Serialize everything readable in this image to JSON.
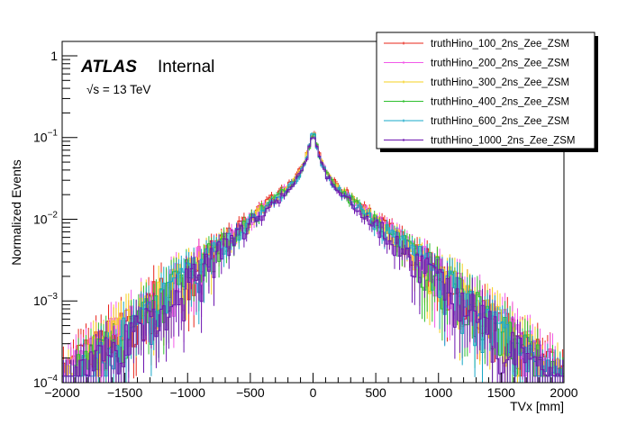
{
  "chart_data": {
    "type": "line",
    "subtype": "step-histogram",
    "title": "",
    "xlabel": "TVx [mm]",
    "ylabel": "Normalized Events",
    "xlim": [
      -2000,
      2000
    ],
    "ylim": [
      0.0001,
      1.5
    ],
    "yscale": "log",
    "grid": false,
    "legend_position": "top-right",
    "x_ticks": [
      -2000,
      -1500,
      -1000,
      -500,
      0,
      500,
      1000,
      1500,
      2000
    ],
    "x_tick_labels": [
      "−2000",
      "−1500",
      "−1000",
      "−500",
      "0",
      "500",
      "1000",
      "1500",
      "2000"
    ],
    "y_tick_labels": [
      {
        "value": 1,
        "base": "1",
        "exp": ""
      },
      {
        "value": 0.1,
        "base": "10",
        "exp": "−1"
      },
      {
        "value": 0.01,
        "base": "10",
        "exp": "−2"
      },
      {
        "value": 0.001,
        "base": "10",
        "exp": "−3"
      },
      {
        "value": 0.0001,
        "base": "10",
        "exp": "−4"
      }
    ],
    "bin_width_mm": 20,
    "series": [
      {
        "name": "truthHino_100_2ns_Zee_ZSM",
        "color": "#e8241a",
        "peak": 0.13,
        "core_decay_mm": 38,
        "tail_at_500": 0.0105,
        "tail_decay_mm": 335
      },
      {
        "name": "truthHino_200_2ns_Zee_ZSM",
        "color": "#f25ae8",
        "peak": 0.13,
        "core_decay_mm": 38,
        "tail_at_500": 0.01,
        "tail_decay_mm": 340
      },
      {
        "name": "truthHino_300_2ns_Zee_ZSM",
        "color": "#f5d020",
        "peak": 0.128,
        "core_decay_mm": 38,
        "tail_at_500": 0.0098,
        "tail_decay_mm": 330
      },
      {
        "name": "truthHino_400_2ns_Zee_ZSM",
        "color": "#2fbf2f",
        "peak": 0.127,
        "core_decay_mm": 38,
        "tail_at_500": 0.0095,
        "tail_decay_mm": 325
      },
      {
        "name": "truthHino_600_2ns_Zee_ZSM",
        "color": "#17a8c8",
        "peak": 0.126,
        "core_decay_mm": 38,
        "tail_at_500": 0.009,
        "tail_decay_mm": 320
      },
      {
        "name": "truthHino_1000_2ns_Zee_ZSM",
        "color": "#6c14b0",
        "peak": 0.125,
        "core_decay_mm": 38,
        "tail_at_500": 0.0085,
        "tail_decay_mm": 315
      }
    ]
  },
  "annotations": {
    "experiment": "ATLAS",
    "status": "Internal",
    "energy_prefix": "√s",
    "energy_value": " = 13 TeV"
  }
}
